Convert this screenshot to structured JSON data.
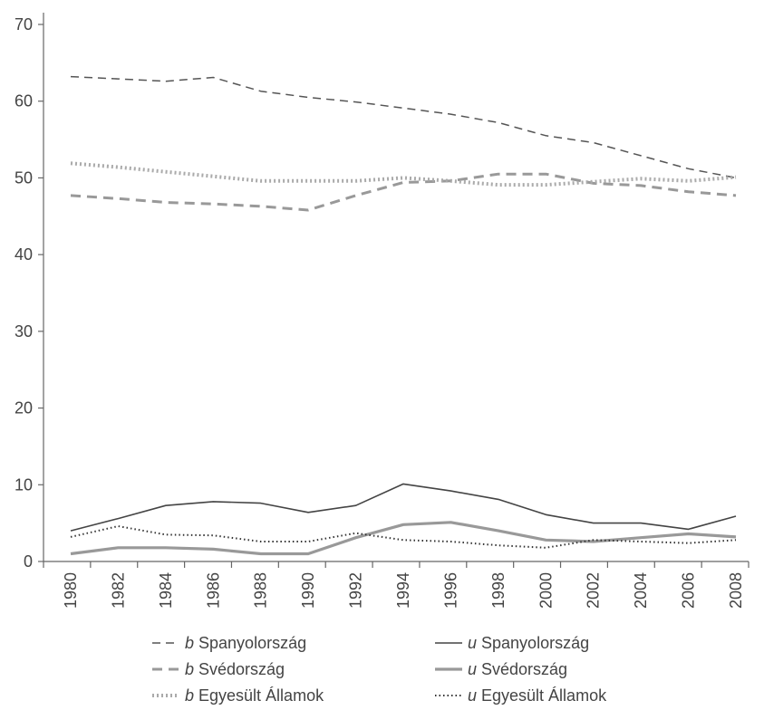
{
  "chart_data": {
    "type": "line",
    "x": [
      1980,
      1982,
      1984,
      1986,
      1988,
      1990,
      1992,
      1994,
      1996,
      1998,
      2000,
      2002,
      2004,
      2006,
      2008
    ],
    "ylim": [
      0,
      70
    ],
    "yticks": [
      0,
      10,
      20,
      30,
      40,
      50,
      60,
      70
    ],
    "xticks": [
      "1980",
      "1982",
      "1984",
      "1986",
      "1988",
      "1990",
      "1992",
      "1994",
      "1996",
      "1998",
      "2000",
      "2002",
      "2004",
      "2006",
      "2008"
    ],
    "grid": false,
    "legend_position": "bottom",
    "series": [
      {
        "prefix": "b",
        "name": "Spanyolország",
        "color": "#555555",
        "style": "dashed",
        "values": [
          63.2,
          62.9,
          62.6,
          63.1,
          61.3,
          60.5,
          59.9,
          59.1,
          58.3,
          57.2,
          55.5,
          54.6,
          52.9,
          51.2,
          50.0
        ]
      },
      {
        "prefix": "b",
        "name": "Svédország",
        "color": "#999999",
        "style": "dashed-thick",
        "values": [
          47.7,
          47.3,
          46.8,
          46.6,
          46.3,
          45.8,
          47.7,
          49.4,
          49.6,
          50.5,
          50.5,
          49.3,
          49.0,
          48.2,
          47.7
        ]
      },
      {
        "prefix": "b",
        "name": "Egyesült Államok",
        "color": "#aaaaaa",
        "style": "dotted-thick",
        "values": [
          51.9,
          51.4,
          50.8,
          50.2,
          49.6,
          49.6,
          49.6,
          50.0,
          49.6,
          49.1,
          49.1,
          49.5,
          49.9,
          49.6,
          50.1
        ]
      },
      {
        "prefix": "u",
        "name": "Spanyolország",
        "color": "#444444",
        "style": "solid",
        "values": [
          4.0,
          5.6,
          7.3,
          7.8,
          7.6,
          6.4,
          7.3,
          10.1,
          9.2,
          8.1,
          6.1,
          5.0,
          5.0,
          4.2,
          5.9
        ]
      },
      {
        "prefix": "u",
        "name": "Svédország",
        "color": "#999999",
        "style": "solid-thick",
        "values": [
          1.0,
          1.8,
          1.8,
          1.6,
          1.0,
          1.0,
          3.1,
          4.8,
          5.1,
          4.0,
          2.8,
          2.6,
          3.1,
          3.6,
          3.2
        ]
      },
      {
        "prefix": "u",
        "name": "Egyesült Államok",
        "color": "#333333",
        "style": "dotted",
        "values": [
          3.2,
          4.6,
          3.5,
          3.4,
          2.6,
          2.6,
          3.7,
          2.8,
          2.6,
          2.1,
          1.8,
          2.8,
          2.6,
          2.4,
          2.8
        ]
      }
    ]
  }
}
